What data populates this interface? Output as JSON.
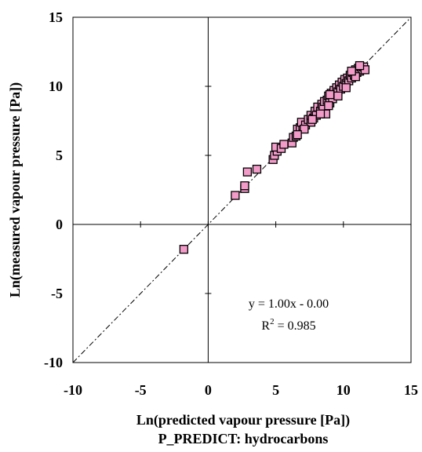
{
  "chart_data": {
    "type": "scatter",
    "title": "",
    "xlabel": "Ln(predicted vapour pressure [Pa])",
    "subtitle": "P_PREDICT: hydrocarbons",
    "ylabel": "Ln(measured vapour pressure [Pa])",
    "xlim": [
      -10,
      15
    ],
    "ylim": [
      -10,
      15
    ],
    "xticks": [
      "-10",
      "-5",
      "0",
      "5",
      "10",
      "15"
    ],
    "yticks": [
      "15",
      "10",
      "5",
      "0",
      "-5",
      "-10"
    ],
    "grid": false,
    "legend": "none",
    "marker_color": "#F29BC8",
    "marker_edge": "#000000",
    "fit_line": {
      "slope": 1.0,
      "intercept": 0.0,
      "style": "dash-dot"
    },
    "annotations": {
      "equation": "y = 1.00x - 0.00",
      "r2_base": "R",
      "r2_exp": "2",
      "r2_rest": " = 0.985"
    },
    "series": [
      {
        "points": [
          [
            -1.8,
            -1.8
          ],
          [
            2.0,
            2.1
          ],
          [
            2.7,
            2.6
          ],
          [
            2.7,
            2.8
          ],
          [
            2.9,
            3.8
          ],
          [
            3.6,
            4.0
          ],
          [
            4.8,
            4.7
          ],
          [
            4.9,
            5.0
          ],
          [
            5.1,
            5.3
          ],
          [
            5.0,
            5.6
          ],
          [
            5.4,
            5.5
          ],
          [
            5.6,
            5.8
          ],
          [
            6.2,
            5.9
          ],
          [
            6.3,
            6.3
          ],
          [
            6.5,
            6.4
          ],
          [
            6.6,
            6.9
          ],
          [
            6.8,
            7.0
          ],
          [
            7.0,
            7.1
          ],
          [
            6.9,
            7.4
          ],
          [
            7.2,
            7.2
          ],
          [
            7.4,
            7.6
          ],
          [
            7.6,
            7.4
          ],
          [
            7.6,
            7.9
          ],
          [
            7.8,
            7.7
          ],
          [
            7.9,
            8.2
          ],
          [
            8.0,
            7.9
          ],
          [
            8.1,
            8.5
          ],
          [
            8.3,
            8.2
          ],
          [
            8.4,
            8.7
          ],
          [
            8.5,
            8.5
          ],
          [
            8.6,
            8.9
          ],
          [
            8.7,
            8.0
          ],
          [
            8.8,
            9.0
          ],
          [
            8.9,
            9.3
          ],
          [
            9.0,
            8.8
          ],
          [
            9.1,
            9.5
          ],
          [
            9.2,
            9.1
          ],
          [
            9.3,
            9.7
          ],
          [
            9.4,
            9.4
          ],
          [
            9.5,
            9.9
          ],
          [
            9.6,
            9.6
          ],
          [
            9.7,
            10.1
          ],
          [
            9.8,
            9.8
          ],
          [
            9.9,
            10.3
          ],
          [
            10.0,
            10.0
          ],
          [
            10.1,
            10.5
          ],
          [
            10.2,
            10.2
          ],
          [
            10.3,
            10.6
          ],
          [
            10.4,
            10.4
          ],
          [
            10.5,
            10.8
          ],
          [
            10.6,
            10.6
          ],
          [
            10.7,
            11.0
          ],
          [
            10.8,
            10.8
          ],
          [
            10.9,
            11.2
          ],
          [
            11.0,
            11.0
          ],
          [
            11.1,
            11.3
          ],
          [
            11.2,
            11.1
          ],
          [
            11.3,
            11.4
          ],
          [
            11.4,
            11.2
          ],
          [
            11.5,
            11.4
          ],
          [
            11.6,
            11.2
          ],
          [
            10.9,
            10.7
          ],
          [
            10.2,
            9.9
          ],
          [
            9.6,
            9.3
          ],
          [
            8.9,
            8.6
          ],
          [
            8.3,
            8.0
          ],
          [
            7.7,
            7.6
          ],
          [
            7.1,
            6.9
          ],
          [
            6.6,
            6.5
          ],
          [
            9.0,
            9.4
          ],
          [
            10.6,
            11.1
          ],
          [
            11.2,
            11.5
          ]
        ]
      }
    ]
  }
}
